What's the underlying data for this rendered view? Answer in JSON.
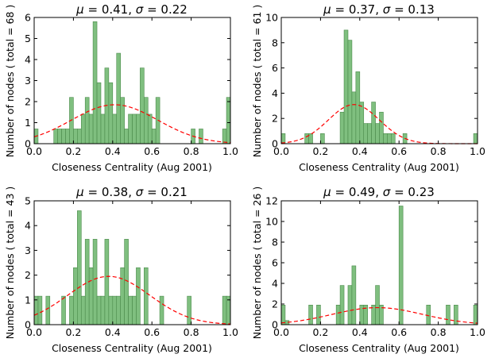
{
  "chart_data": [
    {
      "type": "bar",
      "title_mu": "0.41",
      "title_sigma": "0.22",
      "xlabel": "Closeness Centrality (Aug 2001)",
      "ylabel": "Number of nodes ( total = 68 )",
      "xlim": [
        0,
        1
      ],
      "ylim": [
        0,
        6
      ],
      "xticks": [
        "0.0",
        "0.2",
        "0.4",
        "0.6",
        "0.8",
        "1.0"
      ],
      "yticks": [
        "0",
        "1",
        "2",
        "3",
        "4",
        "5",
        "6"
      ],
      "bin_width": 0.02,
      "bins": [
        {
          "x": 0.0,
          "y": 0.7
        },
        {
          "x": 0.1,
          "y": 0.7
        },
        {
          "x": 0.12,
          "y": 0.7
        },
        {
          "x": 0.14,
          "y": 0.7
        },
        {
          "x": 0.16,
          "y": 0.7
        },
        {
          "x": 0.18,
          "y": 2.2
        },
        {
          "x": 0.2,
          "y": 0.7
        },
        {
          "x": 0.22,
          "y": 0.7
        },
        {
          "x": 0.24,
          "y": 1.4
        },
        {
          "x": 0.26,
          "y": 2.2
        },
        {
          "x": 0.28,
          "y": 1.4
        },
        {
          "x": 0.3,
          "y": 5.8
        },
        {
          "x": 0.32,
          "y": 2.9
        },
        {
          "x": 0.34,
          "y": 1.4
        },
        {
          "x": 0.36,
          "y": 3.6
        },
        {
          "x": 0.38,
          "y": 2.9
        },
        {
          "x": 0.4,
          "y": 1.4
        },
        {
          "x": 0.42,
          "y": 4.3
        },
        {
          "x": 0.44,
          "y": 2.2
        },
        {
          "x": 0.46,
          "y": 0.7
        },
        {
          "x": 0.48,
          "y": 1.4
        },
        {
          "x": 0.5,
          "y": 1.4
        },
        {
          "x": 0.52,
          "y": 1.4
        },
        {
          "x": 0.54,
          "y": 3.6
        },
        {
          "x": 0.56,
          "y": 2.2
        },
        {
          "x": 0.58,
          "y": 1.4
        },
        {
          "x": 0.6,
          "y": 0.7
        },
        {
          "x": 0.62,
          "y": 2.2
        },
        {
          "x": 0.8,
          "y": 0.7
        },
        {
          "x": 0.84,
          "y": 0.7
        },
        {
          "x": 0.96,
          "y": 0.7
        },
        {
          "x": 0.98,
          "y": 2.2
        }
      ],
      "fit": {
        "mu": 0.41,
        "sigma": 0.22,
        "peak": 1.85
      }
    },
    {
      "type": "bar",
      "title_mu": "0.37",
      "title_sigma": "0.13",
      "xlabel": "Closeness Centrality (Aug 2001)",
      "ylabel": "Number of nodes ( total = 61 )",
      "xlim": [
        0,
        1
      ],
      "ylim": [
        0,
        10
      ],
      "xticks": [
        "0.0",
        "0.2",
        "0.4",
        "0.6",
        "0.8",
        "1.0"
      ],
      "yticks": [
        "0",
        "2",
        "4",
        "6",
        "8",
        "10"
      ],
      "bin_width": 0.02,
      "bins": [
        {
          "x": 0.0,
          "y": 0.8
        },
        {
          "x": 0.12,
          "y": 0.8
        },
        {
          "x": 0.14,
          "y": 0.8
        },
        {
          "x": 0.2,
          "y": 0.8
        },
        {
          "x": 0.3,
          "y": 2.5
        },
        {
          "x": 0.32,
          "y": 9.0
        },
        {
          "x": 0.34,
          "y": 8.2
        },
        {
          "x": 0.36,
          "y": 4.1
        },
        {
          "x": 0.38,
          "y": 5.7
        },
        {
          "x": 0.4,
          "y": 3.3
        },
        {
          "x": 0.42,
          "y": 1.6
        },
        {
          "x": 0.44,
          "y": 1.6
        },
        {
          "x": 0.46,
          "y": 3.3
        },
        {
          "x": 0.48,
          "y": 1.6
        },
        {
          "x": 0.5,
          "y": 2.5
        },
        {
          "x": 0.52,
          "y": 0.8
        },
        {
          "x": 0.54,
          "y": 0.8
        },
        {
          "x": 0.56,
          "y": 0.8
        },
        {
          "x": 0.62,
          "y": 0.8
        },
        {
          "x": 0.98,
          "y": 0.8
        }
      ],
      "fit": {
        "mu": 0.37,
        "sigma": 0.13,
        "peak": 3.1
      }
    },
    {
      "type": "bar",
      "title_mu": "0.38",
      "title_sigma": "0.21",
      "xlabel": "Closeness Centrality (Aug 2001)",
      "ylabel": "Number of nodes ( total = 43 )",
      "xlim": [
        0,
        1
      ],
      "ylim": [
        0,
        5
      ],
      "xticks": [
        "0.0",
        "0.2",
        "0.4",
        "0.6",
        "0.8",
        "1.0"
      ],
      "yticks": [
        "0",
        "1",
        "2",
        "3",
        "4",
        "5"
      ],
      "bin_width": 0.02,
      "bins": [
        {
          "x": 0.0,
          "y": 1.15
        },
        {
          "x": 0.02,
          "y": 1.15
        },
        {
          "x": 0.06,
          "y": 1.15
        },
        {
          "x": 0.14,
          "y": 1.15
        },
        {
          "x": 0.18,
          "y": 1.15
        },
        {
          "x": 0.2,
          "y": 2.3
        },
        {
          "x": 0.22,
          "y": 4.6
        },
        {
          "x": 0.24,
          "y": 1.15
        },
        {
          "x": 0.26,
          "y": 3.45
        },
        {
          "x": 0.28,
          "y": 2.3
        },
        {
          "x": 0.3,
          "y": 3.45
        },
        {
          "x": 0.32,
          "y": 1.15
        },
        {
          "x": 0.34,
          "y": 1.15
        },
        {
          "x": 0.36,
          "y": 3.45
        },
        {
          "x": 0.38,
          "y": 1.15
        },
        {
          "x": 0.4,
          "y": 1.15
        },
        {
          "x": 0.42,
          "y": 1.15
        },
        {
          "x": 0.44,
          "y": 2.3
        },
        {
          "x": 0.46,
          "y": 3.45
        },
        {
          "x": 0.48,
          "y": 1.15
        },
        {
          "x": 0.5,
          "y": 1.15
        },
        {
          "x": 0.52,
          "y": 2.3
        },
        {
          "x": 0.56,
          "y": 2.3
        },
        {
          "x": 0.64,
          "y": 1.15
        },
        {
          "x": 0.78,
          "y": 1.15
        },
        {
          "x": 0.96,
          "y": 1.15
        },
        {
          "x": 0.98,
          "y": 1.15
        }
      ],
      "fit": {
        "mu": 0.38,
        "sigma": 0.21,
        "peak": 1.95
      }
    },
    {
      "type": "bar",
      "title_mu": "0.49",
      "title_sigma": "0.23",
      "xlabel": "Closeness Centrality (Aug 2001)",
      "ylabel": "Number of nodes ( total = 26 )",
      "xlim": [
        0,
        1
      ],
      "ylim": [
        0,
        12
      ],
      "xticks": [
        "0.0",
        "0.2",
        "0.4",
        "0.6",
        "0.8",
        "1.0"
      ],
      "yticks": [
        "0",
        "2",
        "4",
        "6",
        "8",
        "10",
        "12"
      ],
      "bin_width": 0.02,
      "bins": [
        {
          "x": 0.0,
          "y": 1.9
        },
        {
          "x": 0.02,
          "y": 0.4
        },
        {
          "x": 0.14,
          "y": 1.9
        },
        {
          "x": 0.18,
          "y": 1.9
        },
        {
          "x": 0.28,
          "y": 1.9
        },
        {
          "x": 0.3,
          "y": 3.8
        },
        {
          "x": 0.34,
          "y": 3.8
        },
        {
          "x": 0.36,
          "y": 5.7
        },
        {
          "x": 0.4,
          "y": 1.9
        },
        {
          "x": 0.42,
          "y": 1.9
        },
        {
          "x": 0.46,
          "y": 1.9
        },
        {
          "x": 0.48,
          "y": 3.8
        },
        {
          "x": 0.5,
          "y": 1.9
        },
        {
          "x": 0.6,
          "y": 11.5
        },
        {
          "x": 0.74,
          "y": 1.9
        },
        {
          "x": 0.84,
          "y": 1.9
        },
        {
          "x": 0.88,
          "y": 1.9
        },
        {
          "x": 0.98,
          "y": 1.9
        }
      ],
      "fit": {
        "mu": 0.49,
        "sigma": 0.23,
        "peak": 1.65
      }
    }
  ]
}
